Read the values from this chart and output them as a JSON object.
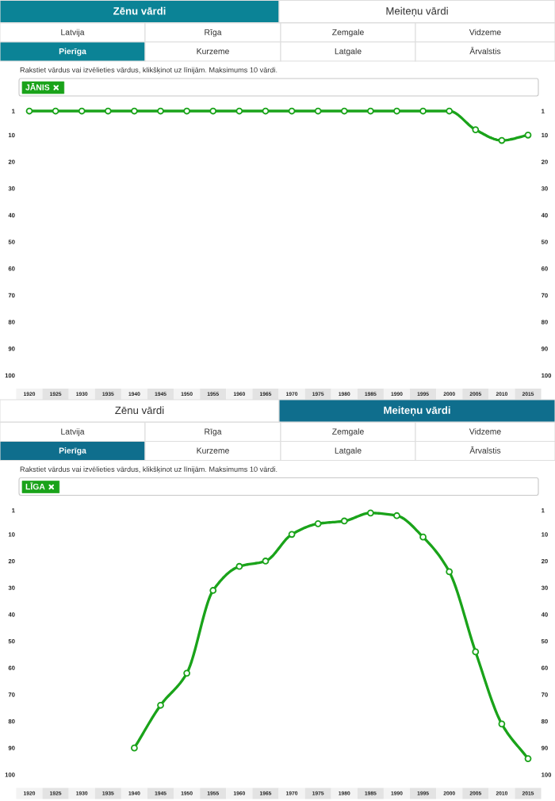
{
  "chart_data": [
    {
      "type": "line",
      "subtitle": "Rakstiet vārdus vai izvēlieties vārdus, klikšķinot uz līnijām. Maksimums 10 vārdi.",
      "annotations": [
        "Zēnu vārdi",
        "Meiteņu vārdi",
        "Latvija",
        "Rīga",
        "Zemgale",
        "Vidzeme",
        "Pierīga",
        "Kurzeme",
        "Latgale",
        "Ārvalstis"
      ],
      "x": [
        1920,
        1925,
        1930,
        1935,
        1940,
        1945,
        1950,
        1955,
        1960,
        1965,
        1970,
        1975,
        1980,
        1985,
        1990,
        1995,
        2000,
        2005,
        2010,
        2015
      ],
      "series": [
        {
          "name": "JĀNIS",
          "color": "#1aa31a",
          "values": [
            1,
            1,
            1,
            1,
            1,
            1,
            1,
            1,
            1,
            1,
            1,
            1,
            1,
            1,
            1,
            1,
            1,
            8,
            12,
            10
          ]
        }
      ],
      "xlim": [
        1920,
        2015
      ],
      "xticks": [
        1920,
        1925,
        1930,
        1935,
        1940,
        1945,
        1950,
        1955,
        1960,
        1965,
        1970,
        1975,
        1980,
        1985,
        1990,
        1995,
        2000,
        2005,
        2010,
        2015
      ],
      "ylim": [
        100,
        1
      ],
      "yticks": [
        1,
        10,
        20,
        30,
        40,
        50,
        60,
        70,
        80,
        90,
        100
      ],
      "y2lim": [
        100,
        1
      ],
      "y2ticks": [
        1,
        10,
        20,
        30,
        40,
        50,
        60,
        70,
        80,
        90,
        100
      ],
      "marker": "circle",
      "line_style": "solid",
      "legend": "top left"
    },
    {
      "type": "line",
      "subtitle": "Rakstiet vārdus vai izvēlieties vārdus, klikšķinot uz līnijām. Maksimums 10 vārdi.",
      "annotations": [
        "Zēnu vārdi",
        "Meiteņu vārdi",
        "Latvija",
        "Rīga",
        "Zemgale",
        "Vidzeme",
        "Pierīga",
        "Kurzeme",
        "Latgale",
        "Ārvalstis"
      ],
      "series": [
        {
          "name": "LĪGA",
          "color": "#1aa31a",
          "x": [
            1940,
            1945,
            1950,
            1955,
            1960,
            1965,
            1970,
            1975,
            1980,
            1985,
            1990,
            1995,
            2000,
            2005,
            2010,
            2015
          ],
          "values": [
            90,
            74,
            62,
            31,
            22,
            20,
            10,
            6,
            5,
            2,
            3,
            11,
            24,
            54,
            81,
            94
          ]
        }
      ],
      "xlim": [
        1920,
        2015
      ],
      "xticks": [
        1920,
        1925,
        1930,
        1935,
        1940,
        1945,
        1950,
        1955,
        1960,
        1965,
        1970,
        1975,
        1980,
        1985,
        1990,
        1995,
        2000,
        2005,
        2010,
        2015
      ],
      "ylim": [
        100,
        1
      ],
      "yticks": [
        1,
        10,
        20,
        30,
        40,
        50,
        60,
        70,
        80,
        90,
        100
      ],
      "y2lim": [
        100,
        1
      ],
      "y2ticks": [
        1,
        10,
        20,
        30,
        40,
        50,
        60,
        70,
        80,
        90,
        100
      ],
      "marker": "circle",
      "line_style": "solid",
      "legend": "top left"
    }
  ]
}
